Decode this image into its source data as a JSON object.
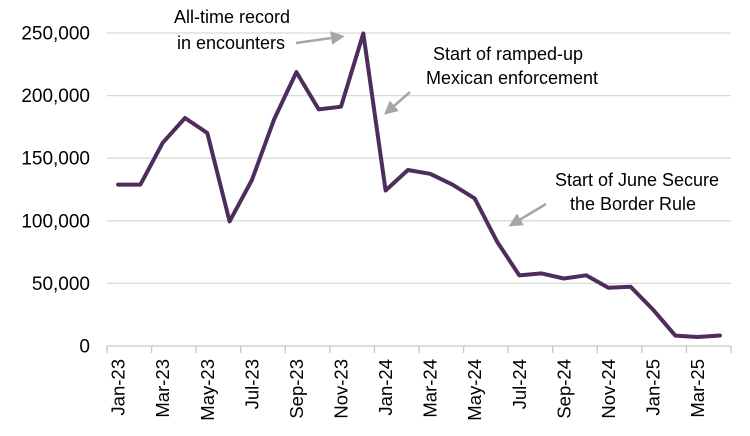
{
  "chart_data": {
    "type": "line",
    "title": "",
    "xlabel": "",
    "ylabel": "",
    "x": [
      "Jan-23",
      "Feb-23",
      "Mar-23",
      "Apr-23",
      "May-23",
      "Jun-23",
      "Jul-23",
      "Aug-23",
      "Sep-23",
      "Oct-23",
      "Nov-23",
      "Dec-23",
      "Jan-24",
      "Feb-24",
      "Mar-24",
      "Apr-24",
      "May-24",
      "Jun-24",
      "Jul-24",
      "Aug-24",
      "Sep-24",
      "Oct-24",
      "Nov-24",
      "Dec-24",
      "Jan-25",
      "Feb-25",
      "Mar-25",
      "Apr-25"
    ],
    "values": [
      128900,
      128900,
      162300,
      182100,
      170100,
      99500,
      132600,
      181000,
      218800,
      189000,
      191100,
      249700,
      124200,
      140600,
      137500,
      128900,
      117900,
      83500,
      56400,
      58000,
      53900,
      56500,
      46600,
      47300,
      29100,
      8300,
      7200,
      8400
    ],
    "ylim": [
      0,
      250000
    ],
    "ytick_values": [
      0,
      50000,
      100000,
      150000,
      200000,
      250000
    ],
    "ytick_labels": [
      "0",
      "50,000",
      "100,000",
      "150,000",
      "200,000",
      "250,000"
    ],
    "xtick_labels": [
      "Jan-23",
      "Mar-23",
      "May-23",
      "Jul-23",
      "Sep-23",
      "Nov-23",
      "Jan-24",
      "Mar-24",
      "May-24",
      "Jul-24",
      "Sep-24",
      "Nov-24",
      "Jan-25",
      "Mar-25"
    ],
    "grid": "horizontal",
    "legend": "none",
    "line_color": "#4e2d5d",
    "gridline_color": "#d9d9d9",
    "axis_color": "#c6c6c6",
    "arrow_color": "#a6a6a6",
    "annotations": [
      {
        "id": "all-time-record",
        "lines": [
          "All-time record",
          "in encounters"
        ]
      },
      {
        "id": "mexican-enforcement",
        "lines": [
          "Start of ramped-up",
          "Mexican enforcement"
        ]
      },
      {
        "id": "border-rule",
        "lines": [
          "Start of June Secure",
          "the Border Rule"
        ]
      }
    ]
  }
}
